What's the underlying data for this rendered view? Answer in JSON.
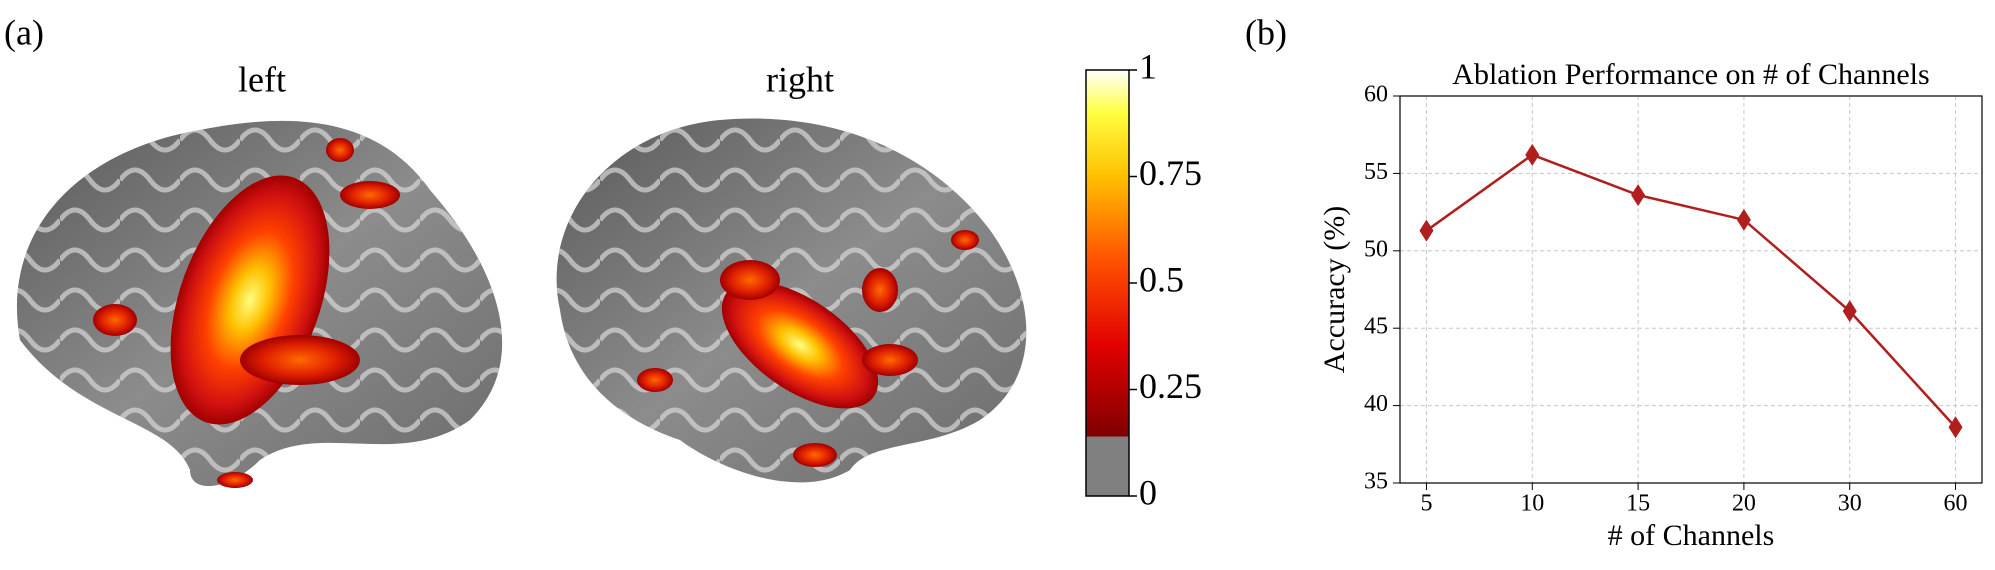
{
  "panel_labels": [
    "(a)",
    "(b)"
  ],
  "brain": {
    "hemispheres": [
      "left",
      "right"
    ],
    "colorbar": {
      "range": [
        0,
        1
      ],
      "ticks": [
        0,
        0.25,
        0.5,
        0.75,
        1
      ]
    }
  },
  "chart_data": {
    "type": "line",
    "title": "Ablation Performance on # of Channels",
    "x_label": "# of Channels",
    "y_label": "Accuracy (%)",
    "categories": [
      "5",
      "10",
      "15",
      "20",
      "30",
      "60"
    ],
    "values": [
      51.3,
      56.2,
      53.6,
      52.0,
      46.1,
      38.6
    ],
    "color": "#b01e1e",
    "marker": "diamond",
    "ylim": [
      35,
      60
    ],
    "yticks": [
      35,
      40,
      45,
      50,
      55,
      60
    ],
    "grid": true
  }
}
